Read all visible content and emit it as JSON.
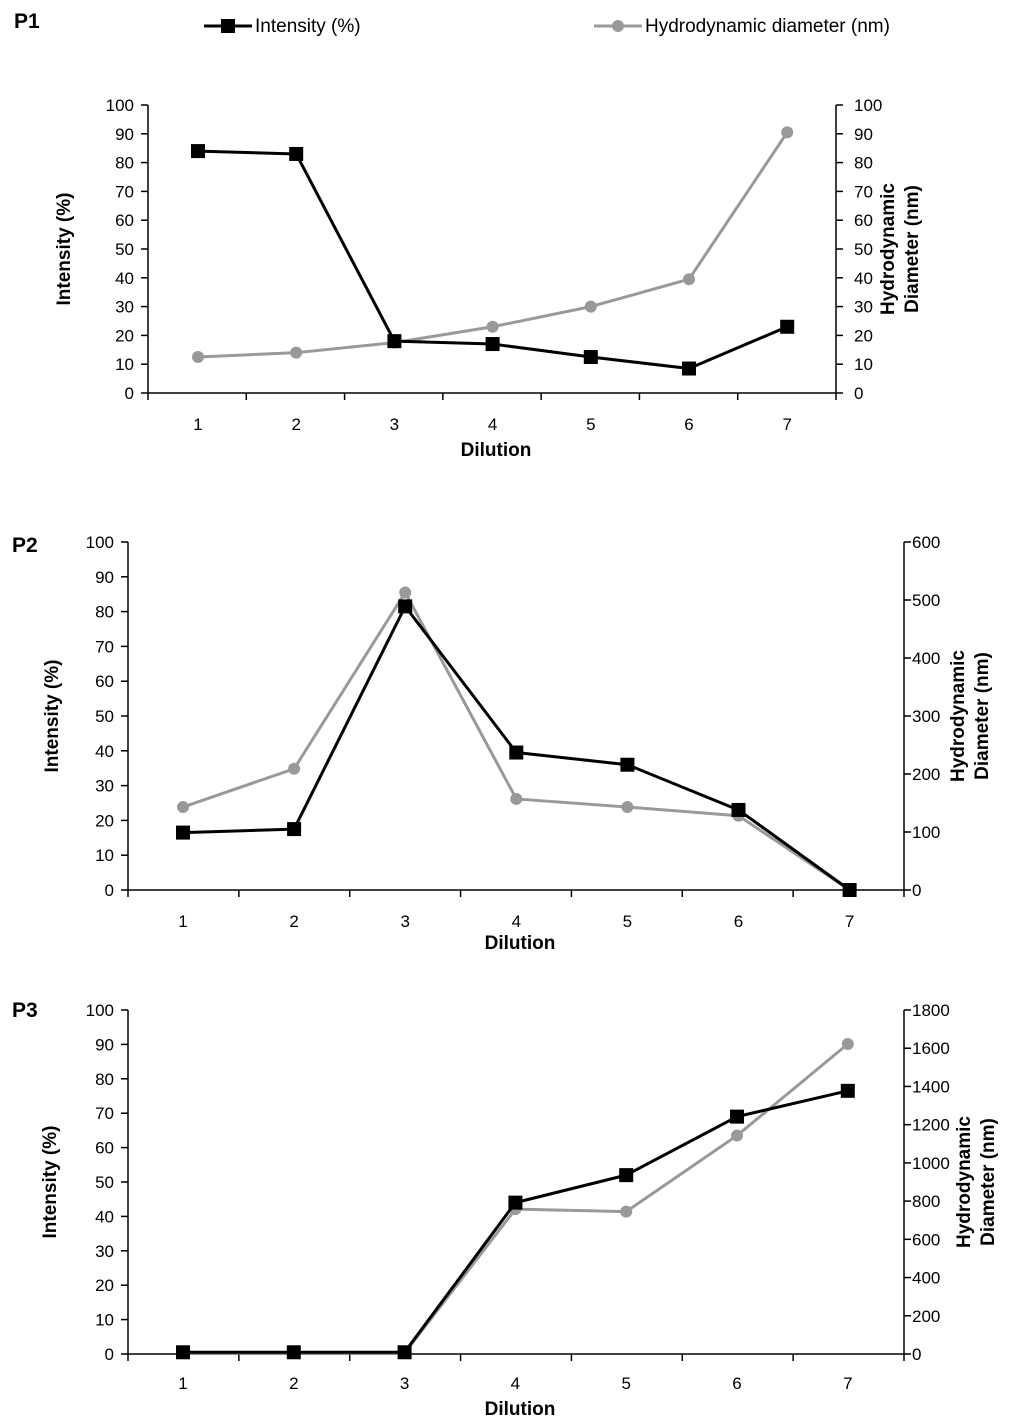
{
  "legend": {
    "intensity_label": "Intensity (%)",
    "diameter_label": "Hydrodynamic diameter (nm)"
  },
  "colors": {
    "intensity": "#000000",
    "diameter": "#999999"
  },
  "chart_data": [
    {
      "type": "line",
      "panel": "P1",
      "x": [
        1,
        2,
        3,
        4,
        5,
        6,
        7
      ],
      "xlabel": "Dilution",
      "ylabel": "Intensity (%)",
      "y2label_line1": "Hydrodynamic",
      "y2label_line2": "Diameter (nm)",
      "ylim": [
        0,
        100
      ],
      "y2lim": [
        0,
        100
      ],
      "yticks": [
        0,
        10,
        20,
        30,
        40,
        50,
        60,
        70,
        80,
        90,
        100
      ],
      "y2ticks": [
        0,
        10,
        20,
        30,
        40,
        50,
        60,
        70,
        80,
        90,
        100
      ],
      "series": [
        {
          "name": "Intensity (%)",
          "axis": "left",
          "values": [
            84,
            83,
            18,
            17,
            12.5,
            8.5,
            23
          ]
        },
        {
          "name": "Hydrodynamic diameter (nm)",
          "axis": "right",
          "values": [
            12.5,
            14,
            17.5,
            23,
            30,
            39.5,
            90.5
          ]
        }
      ]
    },
    {
      "type": "line",
      "panel": "P2",
      "x": [
        1,
        2,
        3,
        4,
        5,
        6,
        7
      ],
      "xlabel": "Dilution",
      "ylabel": "Intensity (%)",
      "y2label_line1": "Hydrodynamic",
      "y2label_line2": "Diameter (nm)",
      "ylim": [
        0,
        100
      ],
      "y2lim": [
        0,
        600
      ],
      "yticks": [
        0,
        10,
        20,
        30,
        40,
        50,
        60,
        70,
        80,
        90,
        100
      ],
      "y2ticks": [
        0,
        100,
        200,
        300,
        400,
        500,
        600
      ],
      "series": [
        {
          "name": "Intensity (%)",
          "axis": "left",
          "values": [
            16.5,
            17.5,
            81.5,
            39.5,
            36,
            23,
            0
          ]
        },
        {
          "name": "Hydrodynamic diameter (nm)",
          "axis": "right",
          "values": [
            143,
            209,
            513,
            157,
            143,
            128,
            0
          ]
        }
      ]
    },
    {
      "type": "line",
      "panel": "P3",
      "x": [
        1,
        2,
        3,
        4,
        5,
        6,
        7
      ],
      "xlabel": "Dilution",
      "ylabel": "Intensity (%)",
      "y2label_line1": "Hydrodynamic",
      "y2label_line2": "Diameter (nm)",
      "ylim": [
        0,
        100
      ],
      "y2lim": [
        0,
        1800
      ],
      "yticks": [
        0,
        10,
        20,
        30,
        40,
        50,
        60,
        70,
        80,
        90,
        100
      ],
      "y2ticks": [
        0,
        200,
        400,
        600,
        800,
        1000,
        1200,
        1400,
        1600,
        1800
      ],
      "series": [
        {
          "name": "Intensity (%)",
          "axis": "left",
          "values": [
            0.5,
            0.5,
            0.5,
            44,
            52,
            69,
            76.5
          ]
        },
        {
          "name": "Hydrodynamic diameter (nm)",
          "axis": "right",
          "values": [
            5,
            5,
            5,
            758,
            745,
            1143,
            1622
          ]
        }
      ]
    }
  ]
}
